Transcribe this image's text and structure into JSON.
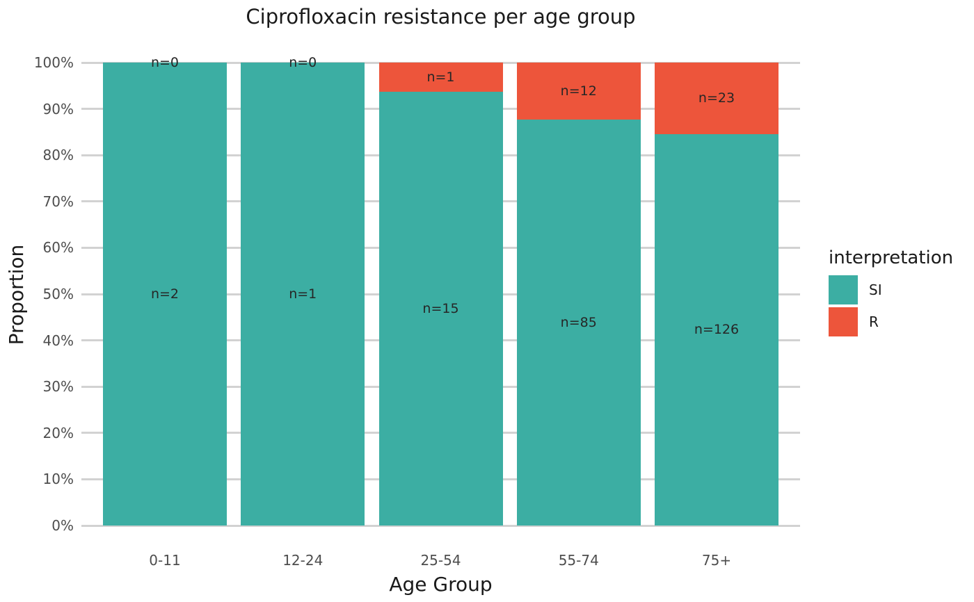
{
  "chart_data": {
    "type": "bar",
    "variant": "stacked-100-percent",
    "title": "Ciprofloxacin resistance per age group",
    "xlabel": "Age Group",
    "ylabel": "Proportion",
    "categories": [
      "0-11",
      "12-24",
      "25-54",
      "55-74",
      "75+"
    ],
    "series": [
      {
        "name": "SI",
        "color": "#3CAEA3",
        "counts": [
          2,
          1,
          15,
          85,
          126
        ]
      },
      {
        "name": "R",
        "color": "#ED553B",
        "counts": [
          0,
          0,
          1,
          12,
          23
        ]
      }
    ],
    "segment_labels": {
      "SI": [
        "n=2",
        "n=1",
        "n=15",
        "n=85",
        "n=126"
      ],
      "R": [
        "n=0",
        "n=0",
        "n=1",
        "n=12",
        "n=23"
      ]
    },
    "y_ticks": [
      "0%",
      "10%",
      "20%",
      "30%",
      "40%",
      "50%",
      "60%",
      "70%",
      "80%",
      "90%",
      "100%"
    ],
    "ylim": [
      0,
      1
    ],
    "grid": true,
    "legend": {
      "title": "interpretation",
      "position": "right",
      "items": [
        {
          "label": "SI",
          "color": "#3CAEA3"
        },
        {
          "label": "R",
          "color": "#ED553B"
        }
      ]
    },
    "colors": {
      "gridline": "#D2D2D2",
      "tick_label": "#4D4D4D",
      "text": "#1A1A1A",
      "background": "#FFFFFF"
    }
  }
}
